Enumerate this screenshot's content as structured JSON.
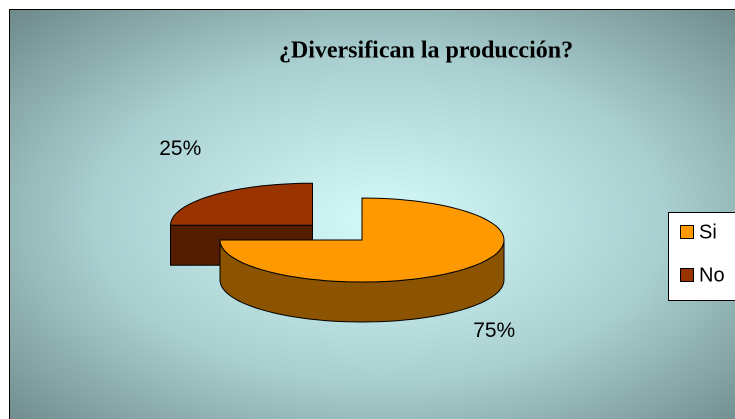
{
  "chart_data": {
    "type": "pie",
    "title": "¿Diversifican la producción?",
    "categories": [
      "Si",
      "No"
    ],
    "values": [
      75,
      25
    ],
    "value_labels": [
      "75%",
      "25%"
    ],
    "colors": [
      "#ff9900",
      "#993300"
    ],
    "legend": "right",
    "exploded": [
      false,
      true
    ]
  }
}
